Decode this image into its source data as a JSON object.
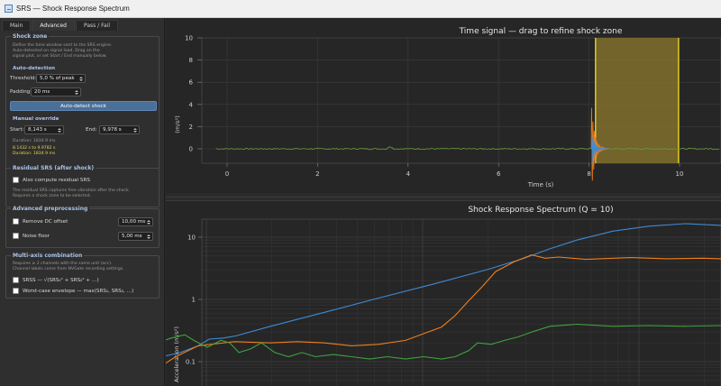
{
  "window": {
    "title": "SRS — Shock Response Spectrum"
  },
  "tabs": [
    {
      "label": "Main",
      "active": false
    },
    {
      "label": "Advanced",
      "active": true
    },
    {
      "label": "Pass / Fail",
      "active": false
    }
  ],
  "shock_zone": {
    "title": "Shock zone",
    "description_1": "Define the time window sent to the SRS engine.",
    "description_2": "Auto-detected on signal load. Drag on the",
    "description_3": "signal plot, or set Start / End manually below.",
    "auto_detection_title": "Auto-detection",
    "threshold_label": "Threshold:",
    "threshold_value": "5,0 % of peak",
    "padding_label": "Padding:",
    "padding_value": "20 ms",
    "auto_detect_button": "Auto-detect shock",
    "manual_override_title": "Manual override",
    "start_label": "Start:",
    "start_value": "8,143 s",
    "end_label": "End:",
    "end_value": "9,978 s",
    "duration_text": "Duration: 1834.9 ms",
    "range_text": "8.1432 s  to  9.9782 s",
    "range_duration_text": "Duration: 1834.9 ms"
  },
  "residual": {
    "title": "Residual SRS (after shock)",
    "checkbox_label": "Also compute residual SRS",
    "description_1": "The residual SRS captures free vibration after the shock.",
    "description_2": "Requires a shock zone to be selected."
  },
  "advanced": {
    "title": "Advanced preprocessing",
    "remove_dc_label": "Remove DC offset",
    "remove_dc_value": "10,00 ms",
    "noise_floor_label": "Noise floor",
    "noise_floor_value": "5,00 ms"
  },
  "multiaxis": {
    "title": "Multi-axis combination",
    "description_1": "Requires ≥ 2 channels with the same unit (acc).",
    "description_2": "Channel labels come from NVGate recording settings.",
    "srss_label": "SRSS   — √(SRS₁² + SRS₂² + …)",
    "worst_case_label": "Worst-case envelope   — max(SRS₁, SRS₂, …)"
  },
  "time_plot": {
    "title": "Time signal  —  drag to refine shock zone",
    "ylabel": "(m/s²)",
    "xlabel": "Time (s)",
    "y_ticks": [
      "10",
      "8",
      "6",
      "4",
      "2",
      "0"
    ],
    "x_ticks": [
      "0",
      "2",
      "4",
      "6",
      "8",
      "10"
    ],
    "shock_start": 8.143,
    "shock_end": 9.978
  },
  "srs_plot": {
    "title": "Shock Response Spectrum  (Q = 10)",
    "ylabel": "Acceleration  (m/s²)",
    "y_ticks": [
      "10",
      "1",
      "0.1"
    ]
  },
  "colors": {
    "series_blue": "#3d8bd4",
    "series_orange": "#f07f1a",
    "series_green": "#3fa33f",
    "zone_fill": "#8c7a2e",
    "zone_border": "#f2dc20",
    "accent_title": "#a9c4e8"
  }
}
